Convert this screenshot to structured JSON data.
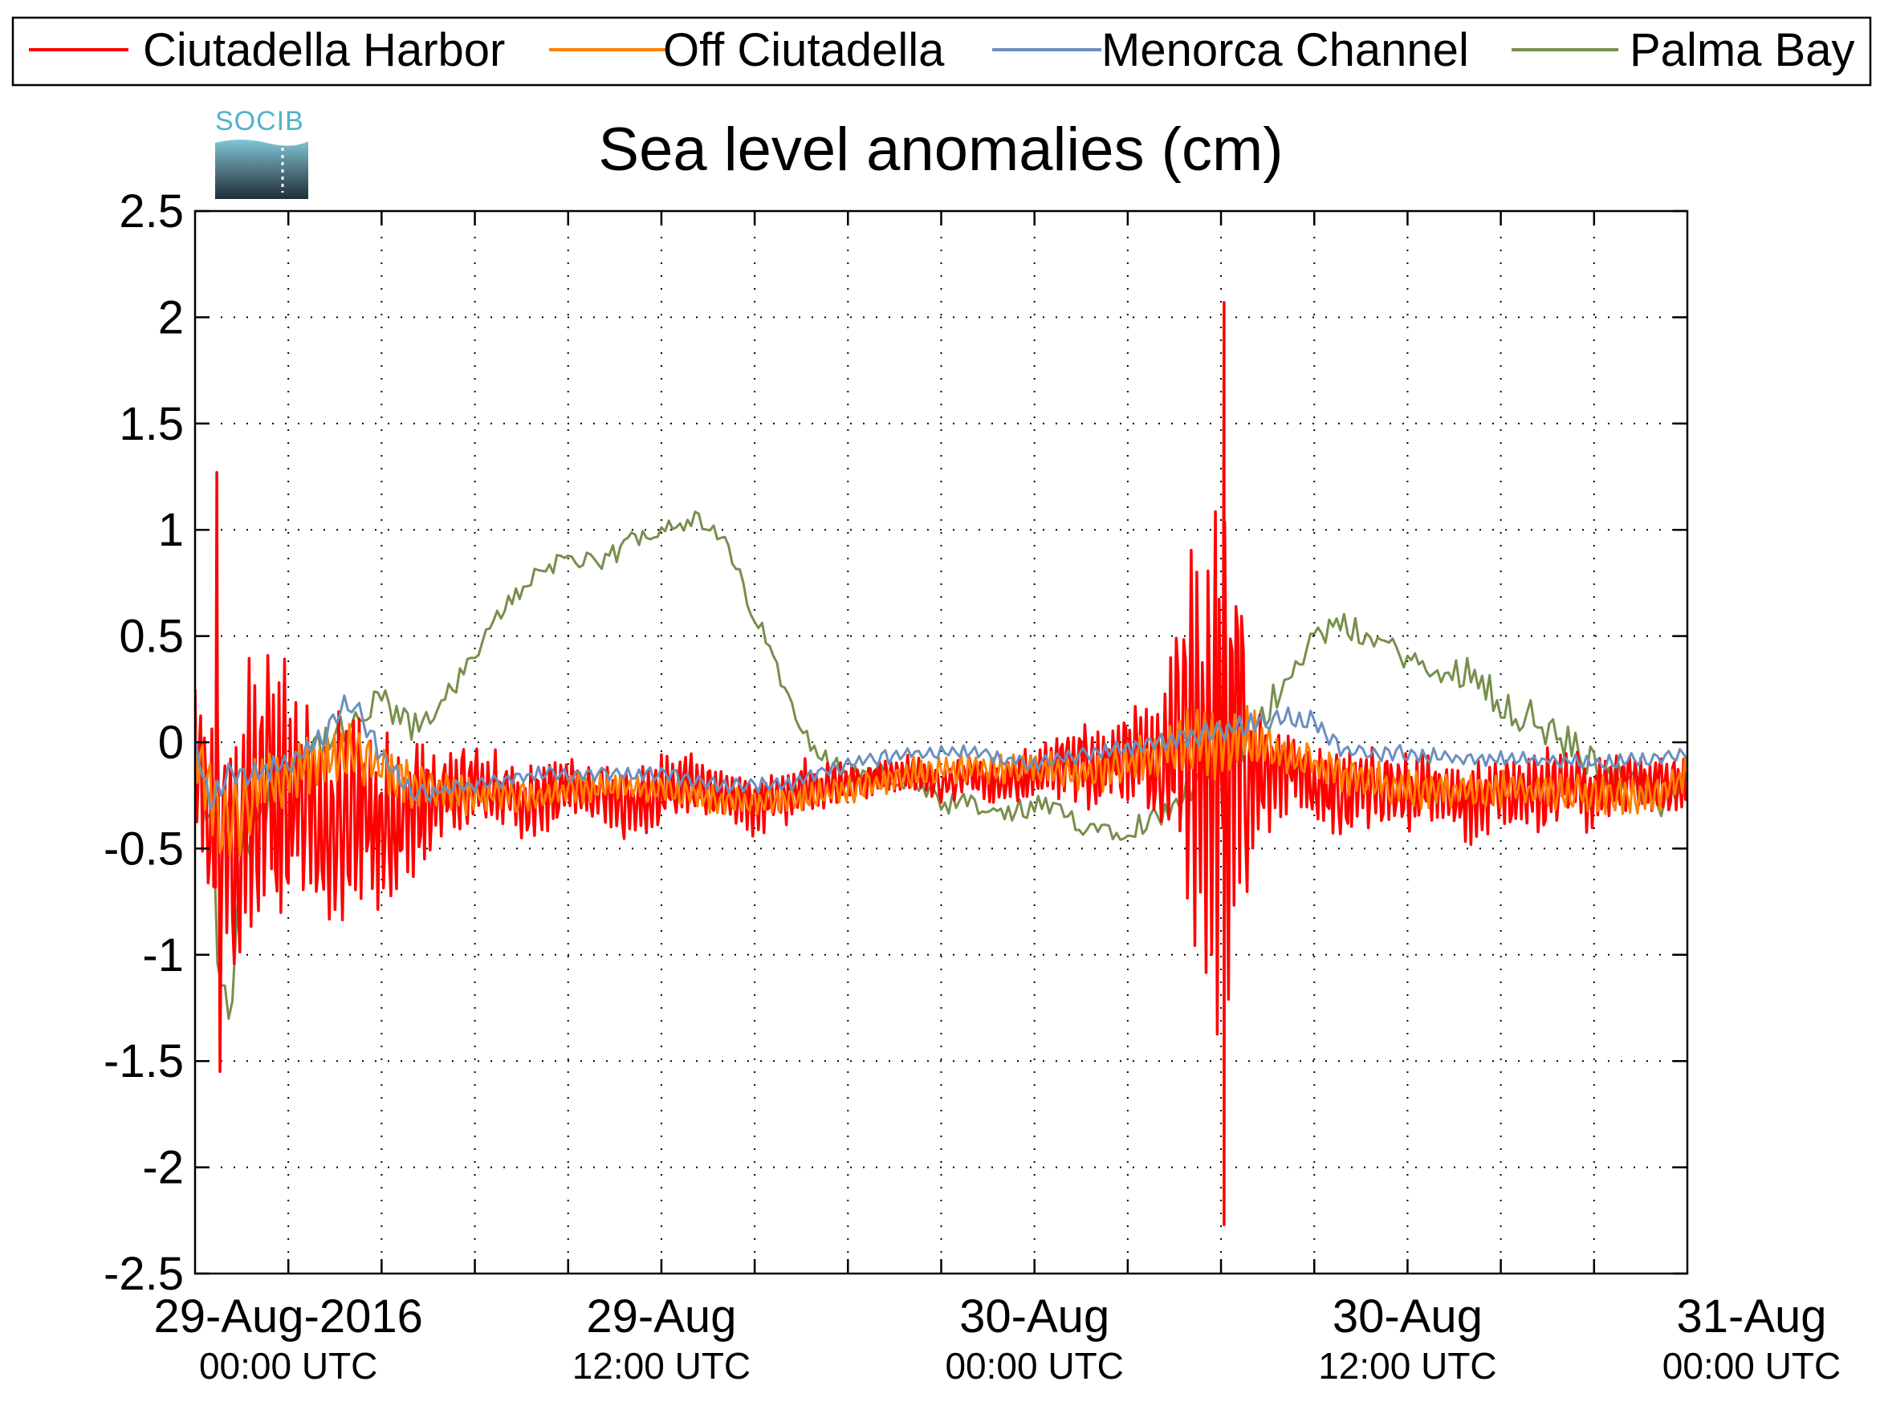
{
  "chart_data": {
    "type": "line",
    "title": "Sea level anomalies (cm)",
    "xlabel": "",
    "ylabel": "",
    "ylim": [
      -2.5,
      2.5
    ],
    "yticks": [
      -2.5,
      -2,
      -1.5,
      -1,
      -0.5,
      0,
      0.5,
      1,
      1.5,
      2,
      2.5
    ],
    "ytick_labels": [
      "-2.5",
      "-2",
      "-1.5",
      "-1",
      "-0.5",
      "0",
      "0.5",
      "1",
      "1.5",
      "2",
      "2.5"
    ],
    "x_unit": "hours since 29-Aug-2016 00:00 UTC",
    "xlim": [
      -3,
      45
    ],
    "xticks": [
      0,
      3,
      6,
      9,
      12,
      15,
      18,
      21,
      24,
      27,
      30,
      33,
      36,
      39,
      42
    ],
    "xtick_labels": [
      {
        "hour": 0,
        "date": "29-Aug-2016",
        "time": "00:00 UTC"
      },
      {
        "hour": 12,
        "date": "29-Aug",
        "time": "12:00 UTC"
      },
      {
        "hour": 24,
        "date": "30-Aug",
        "time": "00:00 UTC"
      },
      {
        "hour": 36,
        "date": "30-Aug",
        "time": "12:00 UTC"
      },
      {
        "hour": 48,
        "date": "31-Aug",
        "time": "00:00 UTC"
      }
    ],
    "grid": true,
    "legend_position": "top, outside, horizontal",
    "series": [
      {
        "name": "Ciutadella Harbor",
        "color": "#ff0000",
        "x": [
          -3,
          -2,
          -1,
          0,
          1,
          2,
          3,
          4,
          5,
          6,
          7,
          8,
          9,
          10,
          11,
          12,
          13,
          14,
          15,
          16,
          17,
          18,
          19,
          20,
          21,
          22,
          23,
          24,
          25,
          26,
          27,
          28,
          29,
          29.5,
          30,
          30.5,
          31,
          32,
          33,
          34,
          35,
          36,
          37,
          38,
          39,
          40,
          41,
          42,
          43,
          44,
          45
        ],
        "y": [
          -0.1,
          -0.5,
          -0.3,
          -0.2,
          -0.35,
          -0.3,
          -0.4,
          -0.3,
          -0.25,
          -0.2,
          -0.25,
          -0.3,
          -0.2,
          -0.25,
          -0.3,
          -0.25,
          -0.2,
          -0.25,
          -0.3,
          -0.25,
          -0.2,
          -0.2,
          -0.15,
          -0.15,
          -0.2,
          -0.15,
          -0.2,
          -0.15,
          -0.1,
          -0.1,
          -0.05,
          -0.1,
          0.05,
          0.05,
          0.1,
          0.0,
          -0.1,
          -0.1,
          -0.2,
          -0.25,
          -0.2,
          -0.25,
          -0.2,
          -0.3,
          -0.2,
          -0.25,
          -0.2,
          -0.25,
          -0.2,
          -0.2,
          -0.2
        ],
        "osc": [
          0.4,
          0.7,
          0.8,
          0.6,
          0.6,
          0.5,
          0.45,
          0.35,
          0.25,
          0.2,
          0.2,
          0.2,
          0.15,
          0.15,
          0.2,
          0.2,
          0.15,
          0.15,
          0.15,
          0.15,
          0.15,
          0.1,
          0.1,
          0.1,
          0.1,
          0.1,
          0.15,
          0.15,
          0.2,
          0.25,
          0.25,
          0.35,
          0.9,
          1.4,
          1.6,
          1.0,
          0.5,
          0.3,
          0.2,
          0.2,
          0.2,
          0.2,
          0.2,
          0.2,
          0.2,
          0.2,
          0.2,
          0.2,
          0.15,
          0.15,
          0.15
        ],
        "extremes": {
          "max": {
            "x": 30.1,
            "y": 2.07
          },
          "min": {
            "x": 30.1,
            "y": -2.27
          },
          "early_max": {
            "x": -2.3,
            "y": 1.27
          },
          "early_min": {
            "x": -2.2,
            "y": -1.55
          }
        }
      },
      {
        "name": "Off Ciutadella",
        "color": "#ff8000",
        "x": [
          -3,
          -2,
          -1,
          0,
          2,
          4,
          6,
          8,
          10,
          12,
          14,
          16,
          18,
          20,
          22,
          24,
          26,
          28,
          29,
          30,
          31,
          32,
          34,
          36,
          38,
          40,
          42,
          44,
          45
        ],
        "y": [
          -0.05,
          -0.4,
          -0.2,
          -0.15,
          -0.05,
          -0.2,
          -0.25,
          -0.25,
          -0.2,
          -0.22,
          -0.28,
          -0.28,
          -0.22,
          -0.15,
          -0.12,
          -0.12,
          -0.15,
          -0.05,
          0.0,
          0.0,
          0.02,
          -0.05,
          -0.15,
          -0.22,
          -0.22,
          -0.22,
          -0.25,
          -0.25,
          -0.15
        ],
        "osc": [
          0.2,
          0.25,
          0.2,
          0.15,
          0.15,
          0.12,
          0.1,
          0.08,
          0.08,
          0.08,
          0.08,
          0.08,
          0.08,
          0.08,
          0.08,
          0.08,
          0.1,
          0.12,
          0.18,
          0.22,
          0.15,
          0.1,
          0.1,
          0.1,
          0.1,
          0.1,
          0.1,
          0.1,
          0.1
        ]
      },
      {
        "name": "Menorca Channel",
        "color": "#6b8fbf",
        "x": [
          -3,
          -2.5,
          -2,
          -1,
          0,
          1,
          2,
          3,
          4,
          6,
          8,
          10,
          12,
          14,
          16,
          18,
          20,
          22,
          24,
          26,
          28,
          30,
          32,
          33,
          34,
          36,
          38,
          40,
          42,
          44,
          45
        ],
        "y": [
          0.0,
          -0.3,
          -0.15,
          -0.15,
          -0.1,
          0.0,
          0.2,
          -0.05,
          -0.25,
          -0.2,
          -0.15,
          -0.15,
          -0.15,
          -0.2,
          -0.2,
          -0.1,
          -0.05,
          -0.05,
          -0.1,
          -0.05,
          0.0,
          0.05,
          0.12,
          0.1,
          -0.05,
          -0.05,
          -0.08,
          -0.08,
          -0.1,
          -0.08,
          -0.05
        ],
        "osc": [
          0.05,
          0.08,
          0.08,
          0.08,
          0.06,
          0.06,
          0.08,
          0.06,
          0.05,
          0.04,
          0.04,
          0.04,
          0.04,
          0.04,
          0.04,
          0.04,
          0.04,
          0.04,
          0.04,
          0.04,
          0.05,
          0.06,
          0.05,
          0.05,
          0.04,
          0.04,
          0.04,
          0.04,
          0.04,
          0.04,
          0.04
        ]
      },
      {
        "name": "Palma Bay",
        "color": "#778f4c",
        "x": [
          -3,
          -2.5,
          -2,
          -1.5,
          -1,
          0,
          1,
          2,
          3,
          4,
          5,
          6,
          7,
          8,
          9,
          10,
          11,
          12,
          13,
          14,
          15,
          16,
          17,
          18,
          19,
          20,
          21,
          22,
          23,
          24,
          25,
          26,
          27,
          28,
          29,
          30,
          31,
          32,
          33,
          34,
          35,
          36,
          37,
          38,
          39,
          40,
          41,
          42,
          43,
          44,
          45
        ],
        "y": [
          0.0,
          -0.4,
          -1.4,
          -0.6,
          -0.3,
          -0.1,
          0.0,
          0.05,
          0.2,
          0.05,
          0.2,
          0.4,
          0.65,
          0.8,
          0.88,
          0.82,
          0.95,
          1.02,
          1.05,
          0.95,
          0.6,
          0.25,
          -0.05,
          -0.15,
          -0.15,
          -0.2,
          -0.3,
          -0.3,
          -0.35,
          -0.3,
          -0.35,
          -0.4,
          -0.4,
          -0.35,
          -0.2,
          -0.1,
          0.0,
          0.3,
          0.5,
          0.55,
          0.48,
          0.4,
          0.3,
          0.35,
          0.2,
          0.1,
          0.0,
          -0.1,
          -0.15,
          -0.3,
          -0.2
        ],
        "osc": [
          0.05,
          0.3,
          0.2,
          0.2,
          0.15,
          0.1,
          0.1,
          0.08,
          0.08,
          0.08,
          0.05,
          0.05,
          0.05,
          0.05,
          0.05,
          0.05,
          0.05,
          0.05,
          0.05,
          0.05,
          0.05,
          0.05,
          0.05,
          0.05,
          0.06,
          0.06,
          0.06,
          0.06,
          0.06,
          0.06,
          0.06,
          0.06,
          0.06,
          0.06,
          0.08,
          0.1,
          0.08,
          0.08,
          0.06,
          0.06,
          0.06,
          0.06,
          0.06,
          0.08,
          0.1,
          0.1,
          0.1,
          0.08,
          0.08,
          0.08,
          0.08
        ]
      }
    ]
  },
  "logo": {
    "text": "SOCIB"
  }
}
